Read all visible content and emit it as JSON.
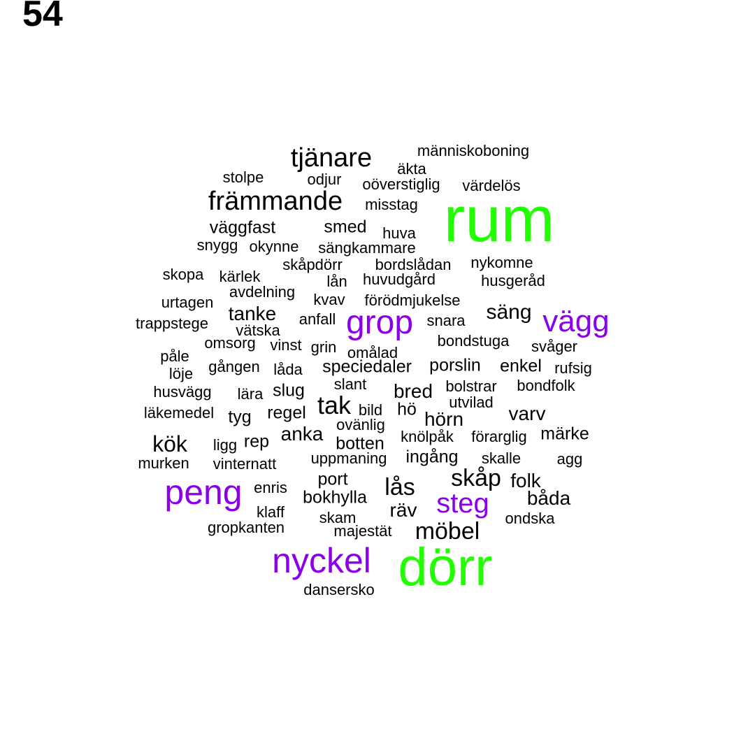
{
  "page_number": "54",
  "colors": {
    "high": "#22ff00",
    "mid": "#8b00e8",
    "base": "#000000"
  },
  "words": [
    {
      "text": "rum",
      "tier": "high"
    },
    {
      "text": "dörr",
      "tier": "high"
    },
    {
      "text": "nyckel",
      "tier": "mid"
    },
    {
      "text": "peng",
      "tier": "mid"
    },
    {
      "text": "grop",
      "tier": "mid"
    },
    {
      "text": "vägg",
      "tier": "mid"
    },
    {
      "text": "steg",
      "tier": "mid"
    },
    {
      "text": "tjänare",
      "tier": "base"
    },
    {
      "text": "främmande",
      "tier": "base"
    },
    {
      "text": "människoboning",
      "tier": "base"
    },
    {
      "text": "äkta",
      "tier": "base"
    },
    {
      "text": "stolpe",
      "tier": "base"
    },
    {
      "text": "odjur",
      "tier": "base"
    },
    {
      "text": "oöverstiglig",
      "tier": "base"
    },
    {
      "text": "värdelös",
      "tier": "base"
    },
    {
      "text": "misstag",
      "tier": "base"
    },
    {
      "text": "väggfast",
      "tier": "base"
    },
    {
      "text": "smed",
      "tier": "base"
    },
    {
      "text": "huva",
      "tier": "base"
    },
    {
      "text": "snygg",
      "tier": "base"
    },
    {
      "text": "okynne",
      "tier": "base"
    },
    {
      "text": "sängkammare",
      "tier": "base"
    },
    {
      "text": "skåpdörr",
      "tier": "base"
    },
    {
      "text": "bordslådan",
      "tier": "base"
    },
    {
      "text": "nykomne",
      "tier": "base"
    },
    {
      "text": "skopa",
      "tier": "base"
    },
    {
      "text": "kärlek",
      "tier": "base"
    },
    {
      "text": "lån",
      "tier": "base"
    },
    {
      "text": "huvudgård",
      "tier": "base"
    },
    {
      "text": "husgeråd",
      "tier": "base"
    },
    {
      "text": "avdelning",
      "tier": "base"
    },
    {
      "text": "urtagen",
      "tier": "base"
    },
    {
      "text": "kvav",
      "tier": "base"
    },
    {
      "text": "förödmjukelse",
      "tier": "base"
    },
    {
      "text": "säng",
      "tier": "base"
    },
    {
      "text": "tanke",
      "tier": "base"
    },
    {
      "text": "trappstege",
      "tier": "base"
    },
    {
      "text": "anfall",
      "tier": "base"
    },
    {
      "text": "snara",
      "tier": "base"
    },
    {
      "text": "vätska",
      "tier": "base"
    },
    {
      "text": "omsorg",
      "tier": "base"
    },
    {
      "text": "vinst",
      "tier": "base"
    },
    {
      "text": "grin",
      "tier": "base"
    },
    {
      "text": "omålad",
      "tier": "base"
    },
    {
      "text": "bondstuga",
      "tier": "base"
    },
    {
      "text": "svåger",
      "tier": "base"
    },
    {
      "text": "påle",
      "tier": "base"
    },
    {
      "text": "gången",
      "tier": "base"
    },
    {
      "text": "låda",
      "tier": "base"
    },
    {
      "text": "speciedaler",
      "tier": "base"
    },
    {
      "text": "porslin",
      "tier": "base"
    },
    {
      "text": "enkel",
      "tier": "base"
    },
    {
      "text": "rufsig",
      "tier": "base"
    },
    {
      "text": "löje",
      "tier": "base"
    },
    {
      "text": "husvägg",
      "tier": "base"
    },
    {
      "text": "lära",
      "tier": "base"
    },
    {
      "text": "slug",
      "tier": "base"
    },
    {
      "text": "slant",
      "tier": "base"
    },
    {
      "text": "bred",
      "tier": "base"
    },
    {
      "text": "bolstrar",
      "tier": "base"
    },
    {
      "text": "bondfolk",
      "tier": "base"
    },
    {
      "text": "tak",
      "tier": "base"
    },
    {
      "text": "utvilad",
      "tier": "base"
    },
    {
      "text": "läkemedel",
      "tier": "base"
    },
    {
      "text": "tyg",
      "tier": "base"
    },
    {
      "text": "regel",
      "tier": "base"
    },
    {
      "text": "bild",
      "tier": "base"
    },
    {
      "text": "hö",
      "tier": "base"
    },
    {
      "text": "hörn",
      "tier": "base"
    },
    {
      "text": "varv",
      "tier": "base"
    },
    {
      "text": "ovänlig",
      "tier": "base"
    },
    {
      "text": "anka",
      "tier": "base"
    },
    {
      "text": "knölpåk",
      "tier": "base"
    },
    {
      "text": "förarglig",
      "tier": "base"
    },
    {
      "text": "märke",
      "tier": "base"
    },
    {
      "text": "kök",
      "tier": "base"
    },
    {
      "text": "ligg",
      "tier": "base"
    },
    {
      "text": "rep",
      "tier": "base"
    },
    {
      "text": "botten",
      "tier": "base"
    },
    {
      "text": "murken",
      "tier": "base"
    },
    {
      "text": "vinternatt",
      "tier": "base"
    },
    {
      "text": "uppmaning",
      "tier": "base"
    },
    {
      "text": "ingång",
      "tier": "base"
    },
    {
      "text": "skalle",
      "tier": "base"
    },
    {
      "text": "agg",
      "tier": "base"
    },
    {
      "text": "skåp",
      "tier": "base"
    },
    {
      "text": "port",
      "tier": "base"
    },
    {
      "text": "folk",
      "tier": "base"
    },
    {
      "text": "enris",
      "tier": "base"
    },
    {
      "text": "lås",
      "tier": "base"
    },
    {
      "text": "bokhylla",
      "tier": "base"
    },
    {
      "text": "båda",
      "tier": "base"
    },
    {
      "text": "klaff",
      "tier": "base"
    },
    {
      "text": "räv",
      "tier": "base"
    },
    {
      "text": "ondska",
      "tier": "base"
    },
    {
      "text": "skam",
      "tier": "base"
    },
    {
      "text": "gropkanten",
      "tier": "base"
    },
    {
      "text": "majestät",
      "tier": "base"
    },
    {
      "text": "möbel",
      "tier": "base"
    },
    {
      "text": "dansersko",
      "tier": "base"
    }
  ]
}
